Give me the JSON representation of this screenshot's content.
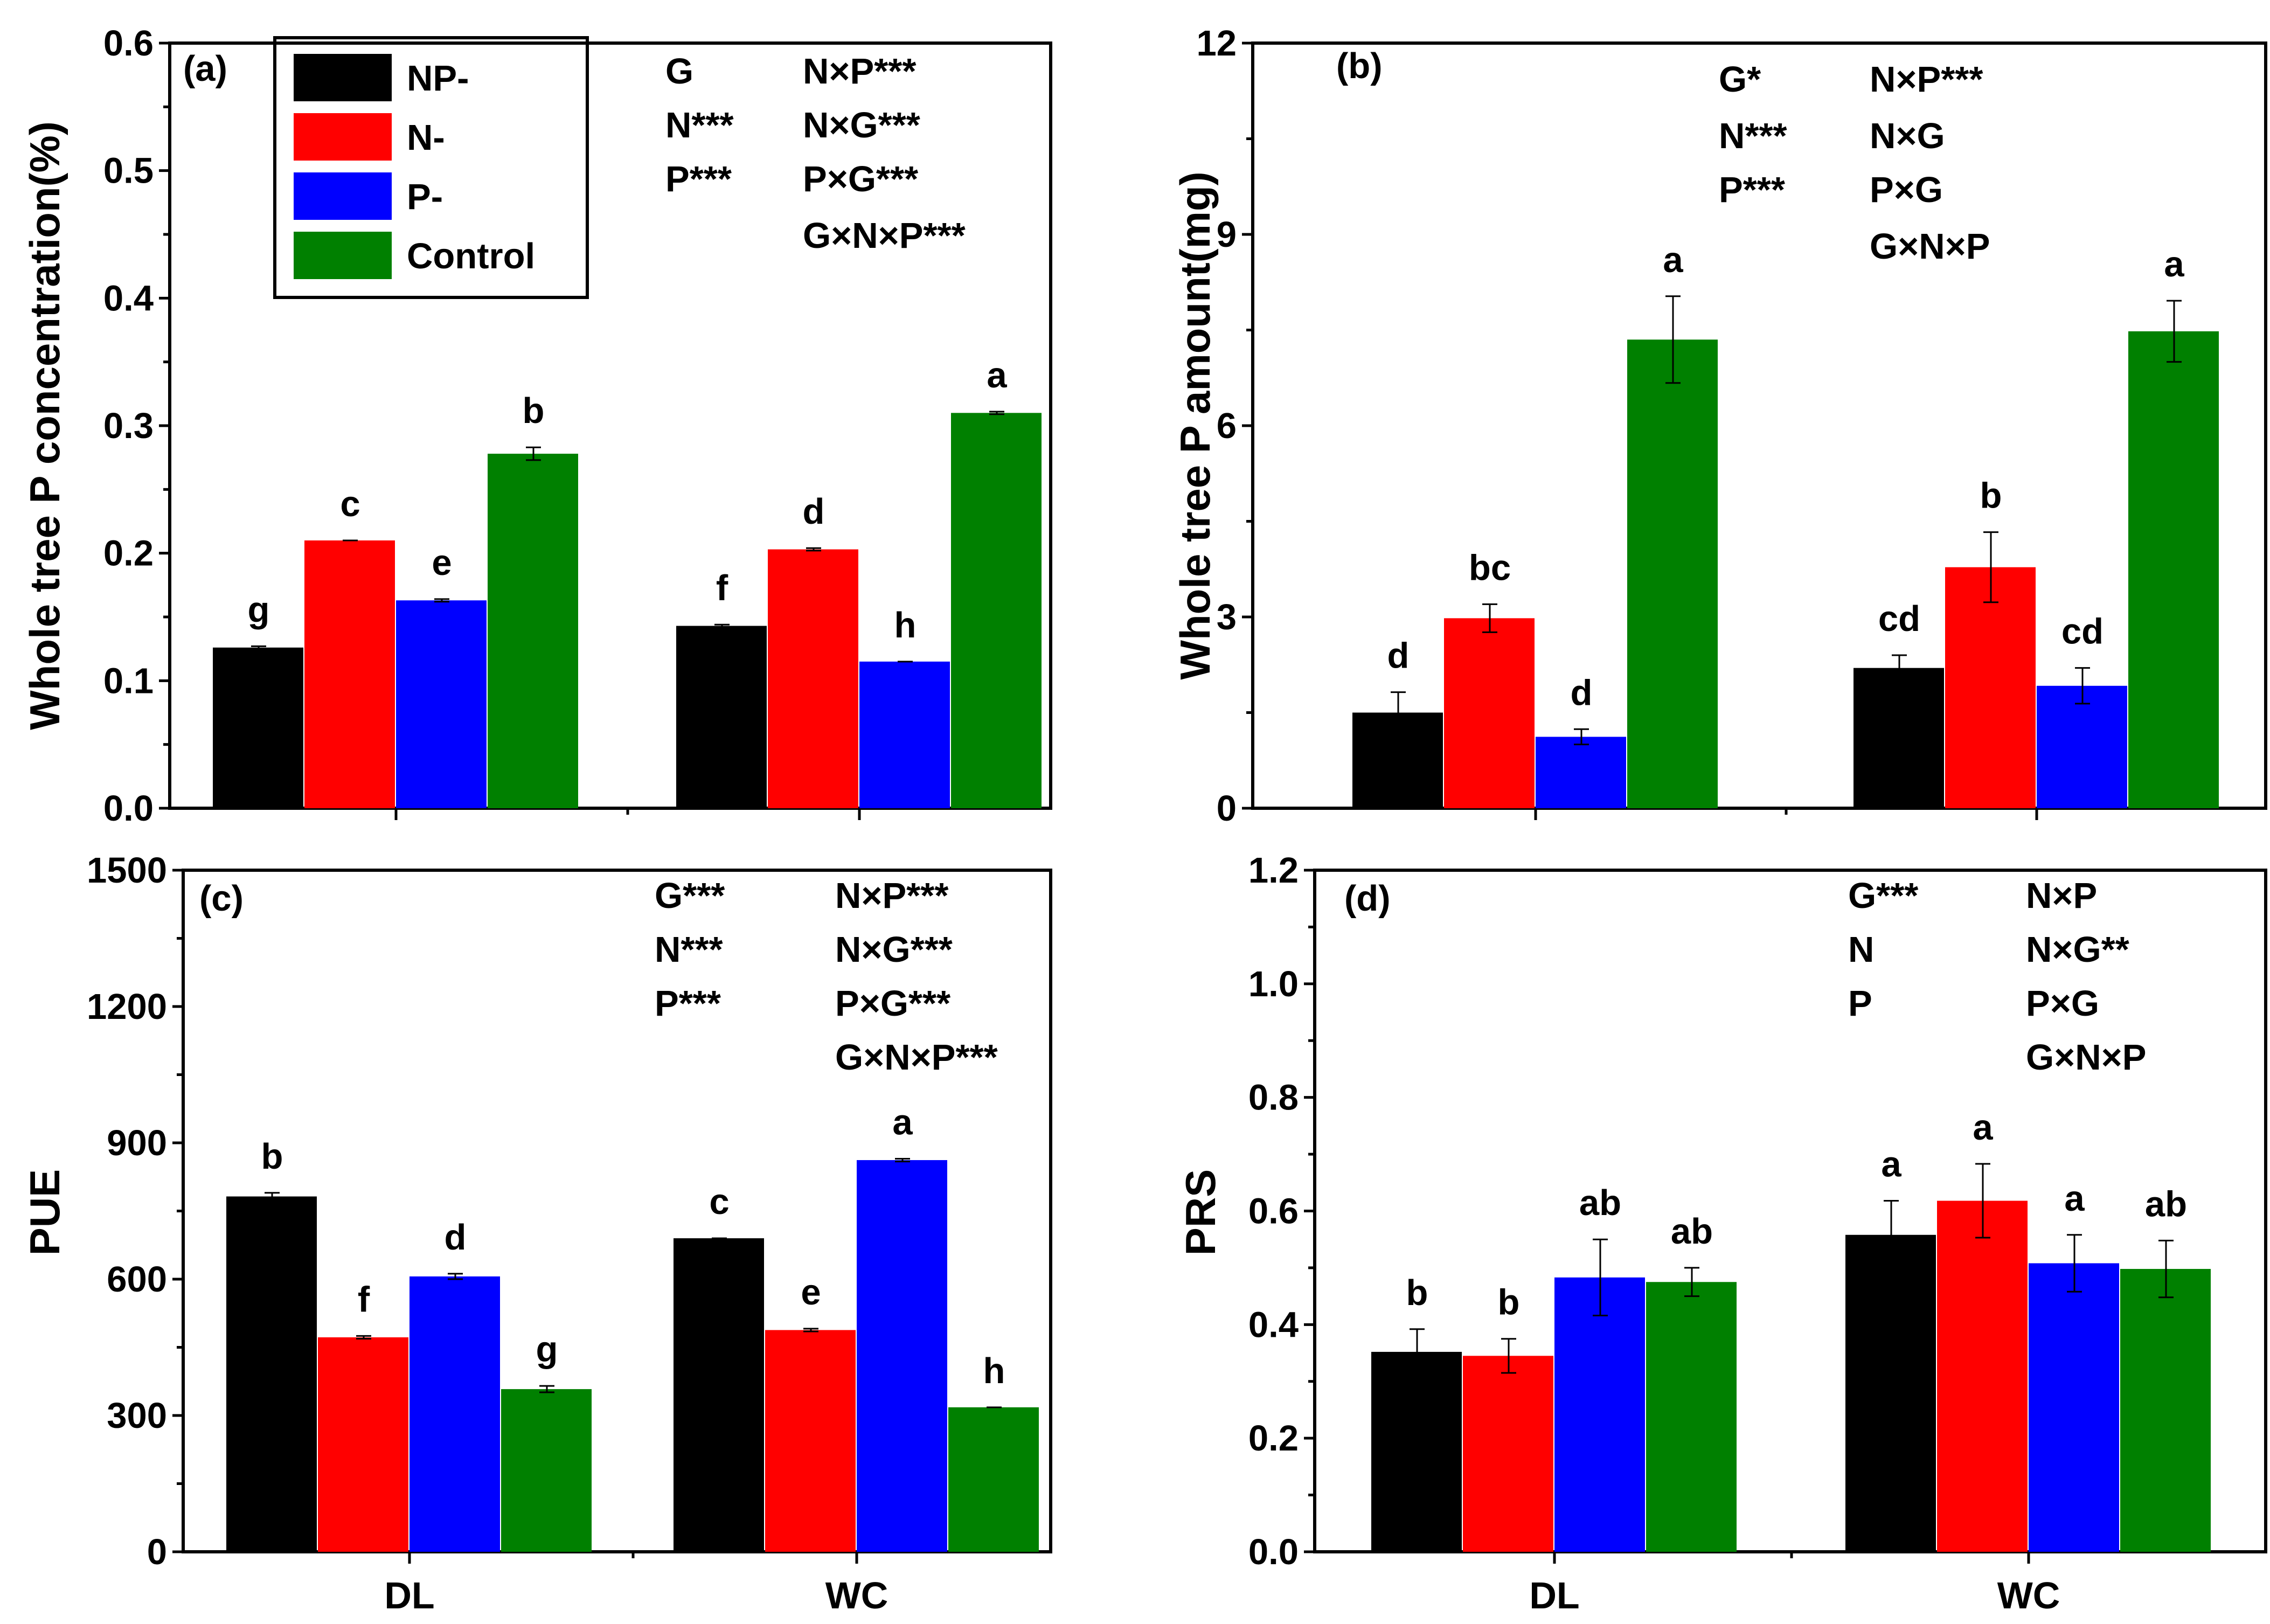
{
  "colors": {
    "NP-": "#000000",
    "N-": "#ff0000",
    "P-": "#0000ff",
    "Control": "#008000"
  },
  "legend": {
    "entries": [
      "NP-",
      "N-",
      "P-",
      "Control"
    ]
  },
  "chart_data": [
    {
      "id": "a",
      "type": "bar",
      "panel_label": "(a)",
      "ylabel": "Whole tree P concentration(%)",
      "ylim": [
        0,
        0.6
      ],
      "ticks": [
        0.0,
        0.1,
        0.2,
        0.3,
        0.4,
        0.5,
        0.6
      ],
      "tick_labels": [
        "0.0",
        "0.1",
        "0.2",
        "0.3",
        "0.4",
        "0.5",
        "0.6"
      ],
      "categories": [
        "DL",
        "WC"
      ],
      "series": [
        {
          "name": "NP-",
          "values": [
            0.126,
            0.143
          ],
          "errors": [
            0.001,
            0.001
          ],
          "letters": [
            "g",
            "f"
          ]
        },
        {
          "name": "N-",
          "values": [
            0.21,
            0.203
          ],
          "errors": [
            0.0,
            0.001
          ],
          "letters": [
            "c",
            "d"
          ]
        },
        {
          "name": "P-",
          "values": [
            0.163,
            0.115
          ],
          "errors": [
            0.001,
            0.0
          ],
          "letters": [
            "e",
            "h"
          ]
        },
        {
          "name": "Control",
          "values": [
            0.278,
            0.31
          ],
          "errors": [
            0.005,
            0.001
          ],
          "letters": [
            "b",
            "a"
          ]
        }
      ],
      "stats": [
        [
          "G",
          "N×P***"
        ],
        [
          "N***",
          "N×G***"
        ],
        [
          "P***",
          "P×G***"
        ],
        [
          "",
          "G×N×P***"
        ]
      ]
    },
    {
      "id": "b",
      "type": "bar",
      "panel_label": "(b)",
      "ylabel": "Whole tree P amount(mg)",
      "ylim": [
        0,
        12
      ],
      "ticks": [
        0,
        3,
        6,
        9,
        12
      ],
      "tick_labels": [
        "0",
        "3",
        "6",
        "9",
        "12"
      ],
      "categories": [
        "DL",
        "WC"
      ],
      "series": [
        {
          "name": "NP-",
          "values": [
            1.5,
            2.2
          ],
          "errors": [
            0.32,
            0.2
          ],
          "letters": [
            "d",
            "cd"
          ]
        },
        {
          "name": "N-",
          "values": [
            2.98,
            3.78
          ],
          "errors": [
            0.22,
            0.55
          ],
          "letters": [
            "bc",
            "b"
          ]
        },
        {
          "name": "P-",
          "values": [
            1.12,
            1.92
          ],
          "errors": [
            0.12,
            0.28
          ],
          "letters": [
            "d",
            "cd"
          ]
        },
        {
          "name": "Control",
          "values": [
            7.35,
            7.48
          ],
          "errors": [
            0.68,
            0.48
          ],
          "letters": [
            "a",
            "a"
          ]
        }
      ],
      "stats": [
        [
          "G*",
          "N×P***"
        ],
        [
          "N***",
          "N×G"
        ],
        [
          "P***",
          "P×G"
        ],
        [
          "",
          "G×N×P"
        ]
      ]
    },
    {
      "id": "c",
      "type": "bar",
      "panel_label": "(c)",
      "ylabel": "PUE",
      "ylim": [
        0,
        1500
      ],
      "ticks": [
        0,
        300,
        600,
        900,
        1200,
        1500
      ],
      "tick_labels": [
        "0",
        "300",
        "600",
        "900",
        "1200",
        "1500"
      ],
      "categories": [
        "DL",
        "WC"
      ],
      "series": [
        {
          "name": "NP-",
          "values": [
            782,
            690
          ],
          "errors": [
            8,
            0
          ],
          "letters": [
            "b",
            "c"
          ]
        },
        {
          "name": "N-",
          "values": [
            472,
            488
          ],
          "errors": [
            3,
            3
          ],
          "letters": [
            "f",
            "e"
          ]
        },
        {
          "name": "P-",
          "values": [
            606,
            862
          ],
          "errors": [
            6,
            3
          ],
          "letters": [
            "d",
            "a"
          ]
        },
        {
          "name": "Control",
          "values": [
            358,
            318
          ],
          "errors": [
            7,
            0
          ],
          "letters": [
            "g",
            "h"
          ]
        }
      ],
      "stats": [
        [
          "G***",
          "N×P***"
        ],
        [
          "N***",
          "N×G***"
        ],
        [
          "P***",
          "P×G***"
        ],
        [
          "",
          "G×N×P***"
        ]
      ]
    },
    {
      "id": "d",
      "type": "bar",
      "panel_label": "(d)",
      "ylabel": "PRS",
      "ylim": [
        0,
        1.2
      ],
      "ticks": [
        0.0,
        0.2,
        0.4,
        0.6,
        0.8,
        1.0,
        1.2
      ],
      "tick_labels": [
        "0.0",
        "0.2",
        "0.4",
        "0.6",
        "0.8",
        "1.0",
        "1.2"
      ],
      "categories": [
        "DL",
        "WC"
      ],
      "series": [
        {
          "name": "NP-",
          "values": [
            0.352,
            0.558
          ],
          "errors": [
            0.04,
            0.06
          ],
          "letters": [
            "b",
            "a"
          ]
        },
        {
          "name": "N-",
          "values": [
            0.345,
            0.618
          ],
          "errors": [
            0.03,
            0.065
          ],
          "letters": [
            "b",
            "a"
          ]
        },
        {
          "name": "P-",
          "values": [
            0.483,
            0.508
          ],
          "errors": [
            0.067,
            0.05
          ],
          "letters": [
            "ab",
            "a"
          ]
        },
        {
          "name": "Control",
          "values": [
            0.475,
            0.498
          ],
          "errors": [
            0.025,
            0.05
          ],
          "letters": [
            "ab",
            "ab"
          ]
        }
      ],
      "stats": [
        [
          "G***",
          "N×P"
        ],
        [
          "N",
          "N×G**"
        ],
        [
          "P",
          "P×G"
        ],
        [
          "",
          "G×N×P"
        ]
      ]
    }
  ]
}
